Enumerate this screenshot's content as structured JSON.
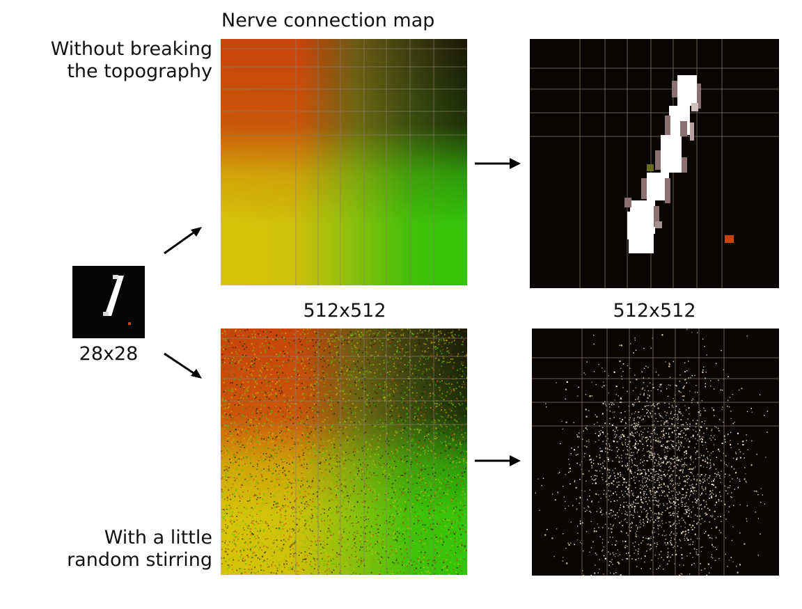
{
  "title": "Nerve connection map",
  "top_caption_line1": "Without breaking",
  "top_caption_line2": "the topography",
  "bottom_caption_line1": "With a little",
  "bottom_caption_line2": "random stirring",
  "input_size_label": "28x28",
  "map_size_label": "512x512",
  "output_size_label": "512x512",
  "colors": {
    "red": "#c8440c",
    "yellow": "#d6c40a",
    "green": "#33c40a",
    "dark": "#0a0505",
    "grid": "#8a7a6a",
    "digit": "#ffffff",
    "speck": "#d8c8a8"
  }
}
